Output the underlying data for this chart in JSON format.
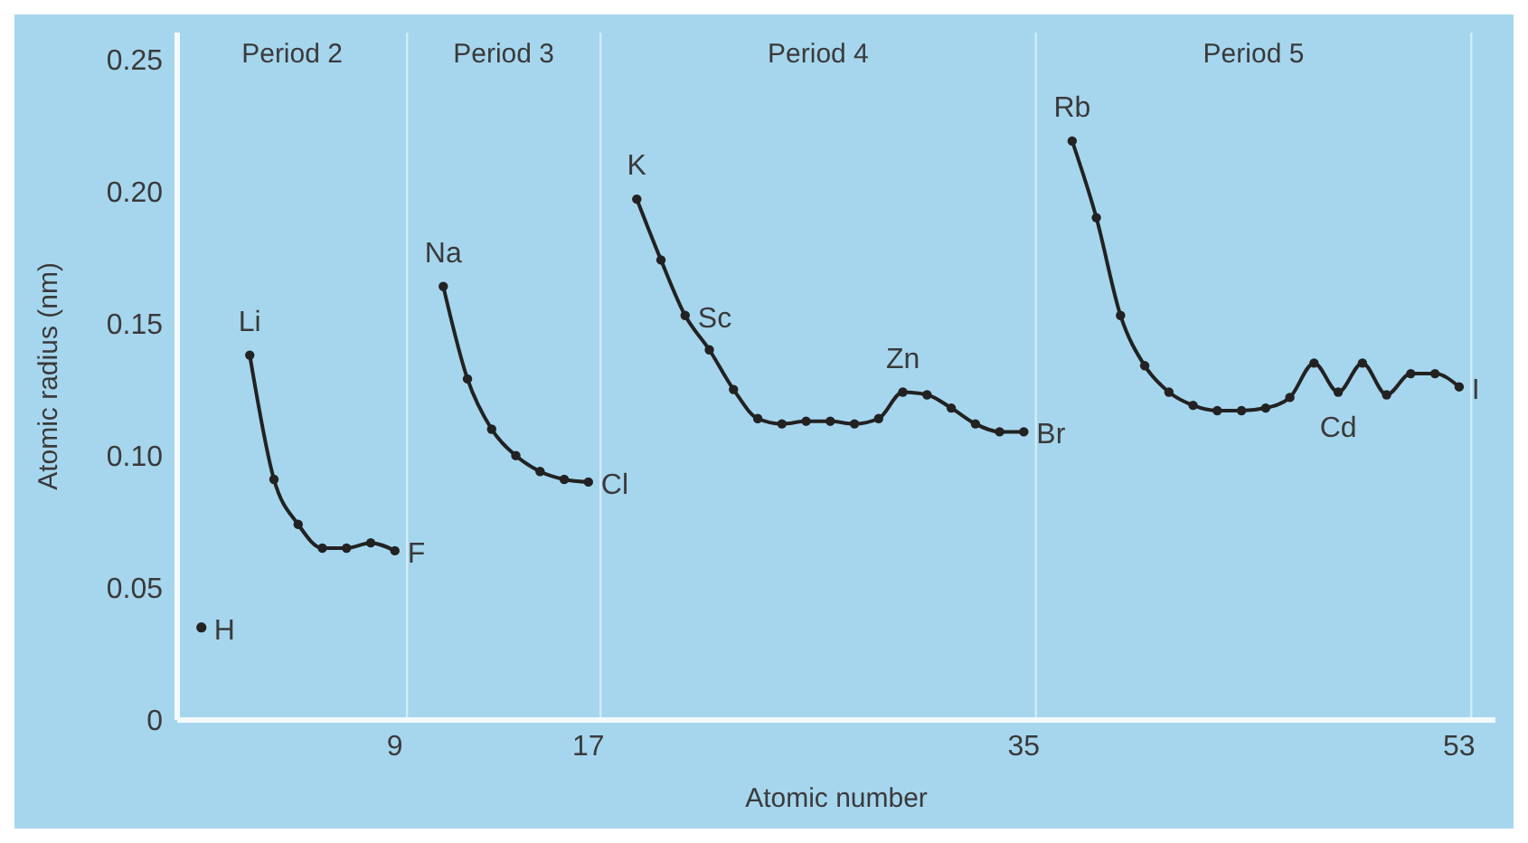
{
  "chart_data": {
    "type": "line",
    "xlabel": "Atomic number",
    "ylabel": "Atomic radius (nm)",
    "xlim": [
      0,
      54.5
    ],
    "xticks": [
      9,
      17,
      35,
      53
    ],
    "ylim": [
      0,
      0.26
    ],
    "yticks": [
      0,
      0.05,
      {
        "value": 0.1,
        "label": "0.10"
      },
      0.15,
      {
        "value": 0.2,
        "label": "0.20"
      },
      0.25
    ],
    "grid": false,
    "marker": "circle",
    "line_style": "solid",
    "series": [
      {
        "type": "scatter",
        "color": "#222222",
        "x": [
          1
        ],
        "values": [
          0.035
        ]
      },
      {
        "color": "#222222",
        "x": [
          3,
          4,
          5,
          6,
          7,
          8,
          9
        ],
        "values": [
          0.138,
          0.091,
          0.074,
          0.065,
          0.065,
          0.067,
          0.064
        ]
      },
      {
        "color": "#222222",
        "x": [
          11,
          12,
          13,
          14,
          15,
          16,
          17
        ],
        "values": [
          0.164,
          0.129,
          0.11,
          0.1,
          0.094,
          0.091,
          0.09
        ]
      },
      {
        "color": "#222222",
        "x": [
          19,
          20,
          21,
          22,
          23,
          24,
          25,
          26,
          27,
          28,
          29,
          30,
          31,
          32,
          33,
          34,
          35
        ],
        "values": [
          0.197,
          0.174,
          0.153,
          0.14,
          0.125,
          0.114,
          0.112,
          0.113,
          0.113,
          0.112,
          0.114,
          0.124,
          0.123,
          0.118,
          0.112,
          0.109,
          0.109
        ]
      },
      {
        "color": "#222222",
        "x": [
          37,
          38,
          39,
          40,
          41,
          42,
          43,
          44,
          45,
          46,
          47,
          48,
          49,
          50,
          51,
          52,
          53
        ],
        "values": [
          0.219,
          0.19,
          0.153,
          0.134,
          0.124,
          0.119,
          0.117,
          0.117,
          0.118,
          0.122,
          0.135,
          0.124,
          0.135,
          0.123,
          0.131,
          0.131,
          0.126
        ]
      }
    ],
    "ref_lines": [
      {
        "axis": "x",
        "value": 9.5,
        "color": "#d2ecf8"
      },
      {
        "axis": "x",
        "value": 17.5,
        "color": "#d2ecf8"
      },
      {
        "axis": "x",
        "value": 35.5,
        "color": "#d2ecf8"
      },
      {
        "axis": "x",
        "value": 53.5,
        "color": "#d2ecf8"
      }
    ],
    "annotations": [
      "Period 2",
      "Period 3",
      "Period 4",
      "Period 5",
      {
        "text": "H",
        "x": 1,
        "y": 0.035
      },
      {
        "text": "Li",
        "x": 3,
        "y": 0.138
      },
      {
        "text": "F",
        "x": 9,
        "y": 0.064
      },
      {
        "text": "Na",
        "x": 11,
        "y": 0.164
      },
      {
        "text": "Cl",
        "x": 17,
        "y": 0.09
      },
      {
        "text": "K",
        "x": 19,
        "y": 0.197
      },
      {
        "text": "Sc",
        "x": 21,
        "y": 0.153
      },
      {
        "text": "Zn",
        "x": 30,
        "y": 0.124
      },
      {
        "text": "Br",
        "x": 35,
        "y": 0.109
      },
      {
        "text": "Rb",
        "x": 37,
        "y": 0.219
      },
      {
        "text": "Cd",
        "x": 48,
        "y": 0.124
      },
      {
        "text": "I",
        "x": 53,
        "y": 0.126
      }
    ]
  }
}
